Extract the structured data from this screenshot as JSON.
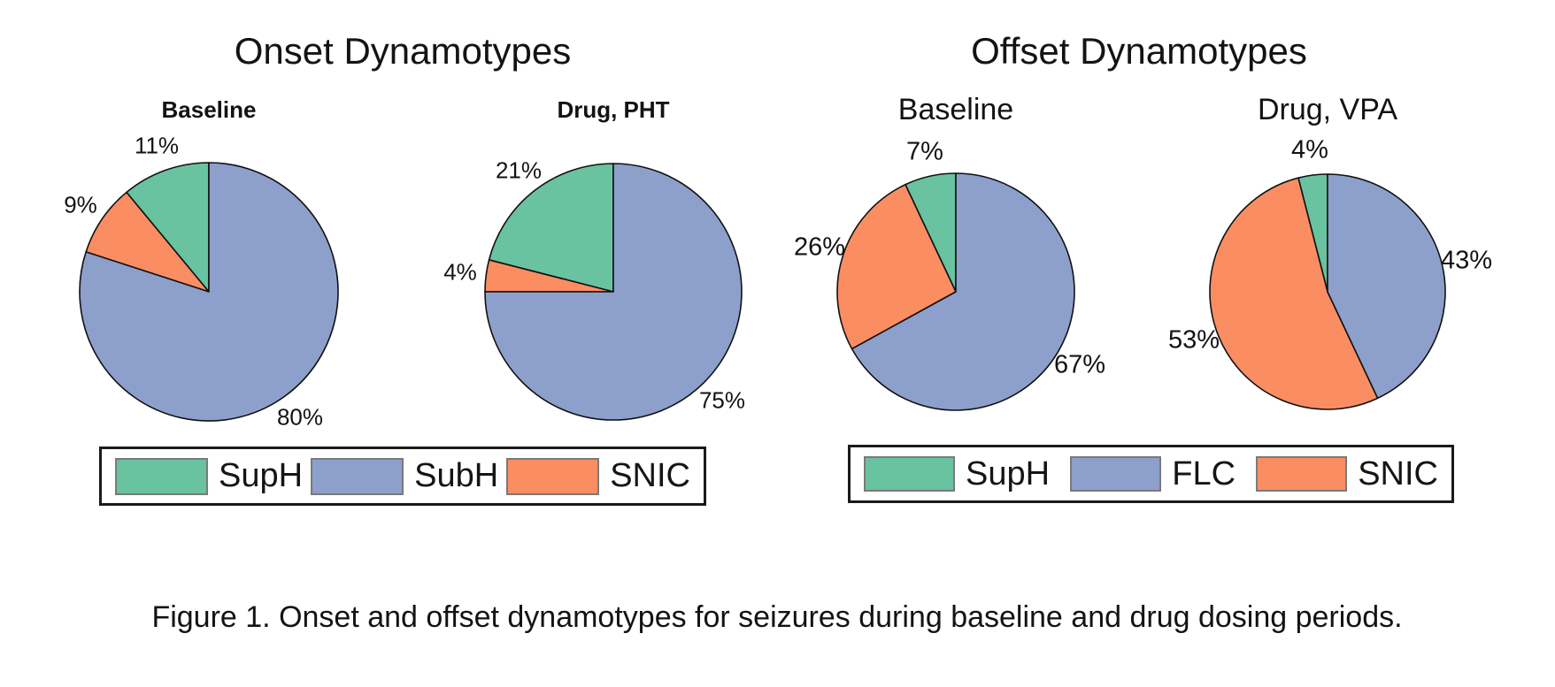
{
  "header": {
    "onset_title": "Onset Dynamotypes",
    "offset_title": "Offset Dynamotypes"
  },
  "colors": {
    "SupH": "#69C2A0",
    "SubH": "#8DA0CB",
    "FLC": "#8DA0CB",
    "SNIC": "#FB8D62",
    "slice_border": "#111111",
    "swatch_border": "#7A7A7A",
    "legend_box_border": "#1A1A1A"
  },
  "legends": {
    "onset": {
      "items": [
        {
          "label": "SupH",
          "color": "#69C2A0"
        },
        {
          "label": "SubH",
          "color": "#8DA0CB"
        },
        {
          "label": "SNIC",
          "color": "#FB8D62"
        }
      ]
    },
    "offset": {
      "items": [
        {
          "label": "SupH",
          "color": "#69C2A0"
        },
        {
          "label": "FLC",
          "color": "#8DA0CB"
        },
        {
          "label": "SNIC",
          "color": "#FB8D62"
        }
      ]
    }
  },
  "caption": "Figure 1. Onset and offset dynamotypes for seizures during baseline and drug dosing periods.",
  "chart_data": [
    {
      "type": "pie",
      "group": "Onset Dynamotypes",
      "title": "Baseline",
      "slice_order": "counterclockwise from 12 o'clock",
      "labels": [
        "SupH",
        "SNIC",
        "SubH"
      ],
      "values": [
        11,
        9,
        80
      ],
      "value_labels": [
        "11%",
        "9%",
        "80%"
      ],
      "legend_entries": [
        "SupH",
        "SubH",
        "SNIC"
      ],
      "legend_position": "below"
    },
    {
      "type": "pie",
      "group": "Onset Dynamotypes",
      "title": "Drug, PHT",
      "slice_order": "counterclockwise from 12 o'clock",
      "labels": [
        "SupH",
        "SNIC",
        "SubH"
      ],
      "values": [
        21,
        4,
        75
      ],
      "value_labels": [
        "21%",
        "4%",
        "75%"
      ],
      "legend_entries": [
        "SupH",
        "SubH",
        "SNIC"
      ],
      "legend_position": "below"
    },
    {
      "type": "pie",
      "group": "Offset Dynamotypes",
      "title": "Baseline",
      "slice_order": "counterclockwise from 12 o'clock",
      "labels": [
        "SupH",
        "SNIC",
        "FLC"
      ],
      "values": [
        7,
        26,
        67
      ],
      "value_labels": [
        "7%",
        "26%",
        "67%"
      ],
      "legend_entries": [
        "SupH",
        "FLC",
        "SNIC"
      ],
      "legend_position": "below"
    },
    {
      "type": "pie",
      "group": "Offset Dynamotypes",
      "title": "Drug, VPA",
      "slice_order": "counterclockwise from 12 o'clock",
      "labels": [
        "SupH",
        "SNIC",
        "FLC"
      ],
      "values": [
        4,
        53,
        43
      ],
      "value_labels": [
        "4%",
        "53%",
        "43%"
      ],
      "legend_entries": [
        "SupH",
        "FLC",
        "SNIC"
      ],
      "legend_position": "below"
    }
  ]
}
